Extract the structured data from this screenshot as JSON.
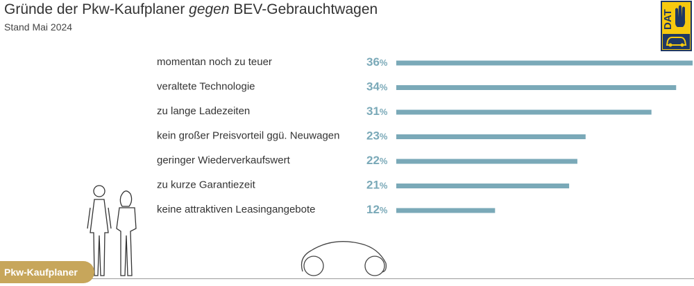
{
  "header": {
    "title_pre": "Gründe der Pkw-Kaufplaner ",
    "title_em": "gegen",
    "title_post": " BEV-Gebrauchtwagen",
    "subtitle": "Stand Mai 2024"
  },
  "logo": {
    "text": "DAT",
    "icon": "car-icon",
    "colors": {
      "background": "#f6c90e",
      "border": "#1f3864"
    }
  },
  "badge": {
    "label": "Pkw-Kaufplaner",
    "color": "#c7a65b"
  },
  "colors": {
    "bar": "#7aa9b8",
    "value_label": "#7aa9b8",
    "text": "#333333"
  },
  "chart_data": {
    "type": "bar",
    "orientation": "horizontal",
    "categories": [
      "momentan noch zu teuer",
      "veraltete Technologie",
      "zu lange Ladezeiten",
      "kein großer Preisvorteil ggü. Neuwagen",
      "geringer Wiederverkaufswert",
      "zu kurze Garantiezeit",
      "keine attraktiven Leasingangebote"
    ],
    "values": [
      36,
      34,
      31,
      23,
      22,
      21,
      12
    ],
    "unit": "%",
    "xlim": [
      0,
      36
    ],
    "title": "Gründe der Pkw-Kaufplaner gegen BEV-Gebrauchtwagen",
    "subtitle": "Stand Mai 2024",
    "grid": false,
    "legend": "none"
  }
}
